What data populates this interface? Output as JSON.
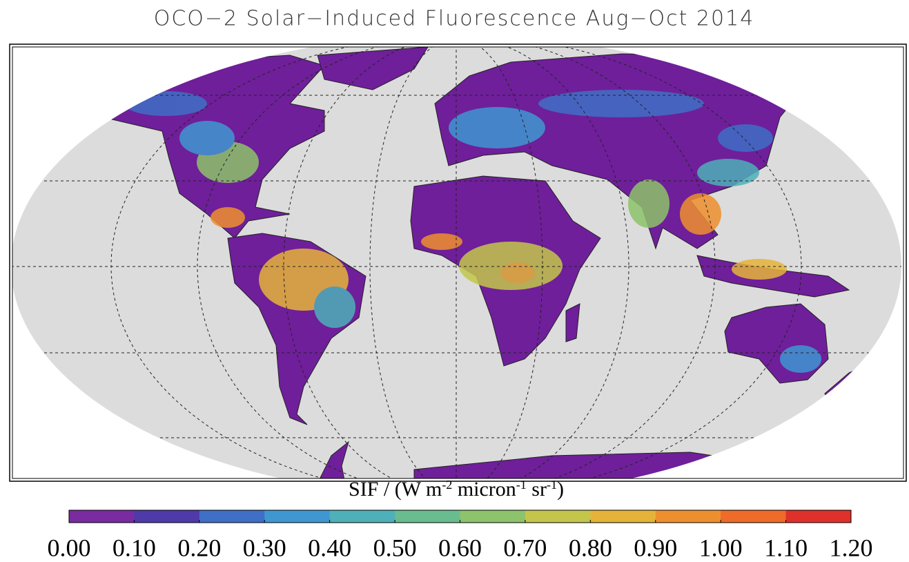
{
  "title": "OCO−2 Solar−Induced Fluorescence Aug−Oct 2014",
  "colorbar": {
    "label_parts": [
      {
        "text": "SIF / (W m"
      },
      {
        "text": "-2",
        "sup": true
      },
      {
        "text": " micron"
      },
      {
        "text": "-1",
        "sup": true
      },
      {
        "text": " sr"
      },
      {
        "text": "-1",
        "sup": true
      },
      {
        "text": ")"
      }
    ],
    "range": [
      0,
      1.2
    ],
    "colors": [
      "#7a2b9f",
      "#4e3aa9",
      "#3f6fc6",
      "#3f97d1",
      "#4eb0b9",
      "#69bc90",
      "#8dc36b",
      "#c3c64b",
      "#e6b33a",
      "#ee8f2e",
      "#ee6b2a",
      "#e0302a"
    ],
    "ticks": [
      {
        "value": 0,
        "label": "0.00"
      },
      {
        "value": 0.1,
        "label": "0.10"
      },
      {
        "value": 0.2,
        "label": "0.20"
      },
      {
        "value": 0.3,
        "label": "0.30"
      },
      {
        "value": 0.4,
        "label": "0.40"
      },
      {
        "value": 0.5,
        "label": "0.50"
      },
      {
        "value": 0.6,
        "label": "0.60"
      },
      {
        "value": 0.7,
        "label": "0.70"
      },
      {
        "value": 0.8,
        "label": "0.80"
      },
      {
        "value": 0.9,
        "label": "0.90"
      },
      {
        "value": 1,
        "label": "1.00"
      },
      {
        "value": 1.1,
        "label": "1.10"
      },
      {
        "value": 1.2,
        "label": "1.20"
      }
    ]
  }
}
